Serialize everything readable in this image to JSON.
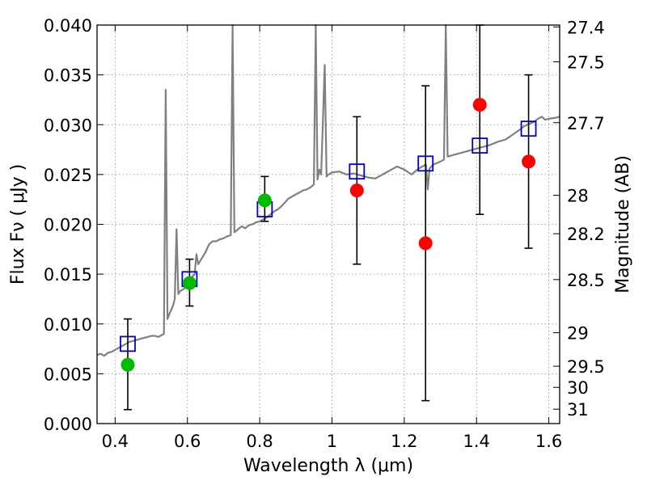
{
  "chart_data": {
    "type": "scatter",
    "title": "",
    "xlabel": "Wavelength  λ (μm)",
    "ylabel": "Flux  Fν  ( μJy )",
    "y2label": "Magnitude (AB)",
    "xlim": [
      0.35,
      1.63
    ],
    "ylim": [
      0.0,
      0.04
    ],
    "grid": true,
    "x_ticks": [
      {
        "v": 0.4,
        "label": "0.4"
      },
      {
        "v": 0.6,
        "label": "0.6"
      },
      {
        "v": 0.8,
        "label": "0.8"
      },
      {
        "v": 1.0,
        "label": "1"
      },
      {
        "v": 1.2,
        "label": "1.2"
      },
      {
        "v": 1.4,
        "label": "1.4"
      },
      {
        "v": 1.6,
        "label": "1.6"
      }
    ],
    "y_ticks": [
      {
        "v": 0.0,
        "label": "0.000"
      },
      {
        "v": 0.005,
        "label": "0.005"
      },
      {
        "v": 0.01,
        "label": "0.010"
      },
      {
        "v": 0.015,
        "label": "0.015"
      },
      {
        "v": 0.02,
        "label": "0.020"
      },
      {
        "v": 0.025,
        "label": "0.025"
      },
      {
        "v": 0.03,
        "label": "0.030"
      },
      {
        "v": 0.035,
        "label": "0.035"
      },
      {
        "v": 0.04,
        "label": "0.040"
      }
    ],
    "y2_ticks": [
      {
        "mag": 27.4,
        "label": "27.4"
      },
      {
        "mag": 27.5,
        "label": "27.5"
      },
      {
        "mag": 27.7,
        "label": "27.7"
      },
      {
        "mag": 28.0,
        "label": "28"
      },
      {
        "mag": 28.2,
        "label": "28.2"
      },
      {
        "mag": 28.5,
        "label": "28.5"
      },
      {
        "mag": 29.0,
        "label": "29"
      },
      {
        "mag": 29.5,
        "label": "29.5"
      },
      {
        "mag": 30.0,
        "label": "30"
      },
      {
        "mag": 31.0,
        "label": "31"
      }
    ],
    "colors": {
      "model": "#808080",
      "model_photometry": "#0000cc",
      "detected": "#00bb00",
      "nondetected": "#ff0000",
      "errorbar": "#000000",
      "grid": "#888888"
    },
    "model_spectrum": [
      [
        0.35,
        0.0069
      ],
      [
        0.36,
        0.007
      ],
      [
        0.37,
        0.0068
      ],
      [
        0.38,
        0.0071
      ],
      [
        0.39,
        0.0072
      ],
      [
        0.4,
        0.0074
      ],
      [
        0.41,
        0.0076
      ],
      [
        0.42,
        0.0078
      ],
      [
        0.43,
        0.008
      ],
      [
        0.44,
        0.0082
      ],
      [
        0.45,
        0.0083
      ],
      [
        0.46,
        0.0084
      ],
      [
        0.47,
        0.0085
      ],
      [
        0.48,
        0.0086
      ],
      [
        0.49,
        0.0087
      ],
      [
        0.5,
        0.0088
      ],
      [
        0.51,
        0.0088
      ],
      [
        0.52,
        0.0087
      ],
      [
        0.53,
        0.0089
      ],
      [
        0.535,
        0.009
      ],
      [
        0.54,
        0.0335
      ],
      [
        0.545,
        0.0105
      ],
      [
        0.55,
        0.011
      ],
      [
        0.56,
        0.0118
      ],
      [
        0.565,
        0.0125
      ],
      [
        0.57,
        0.0195
      ],
      [
        0.575,
        0.013
      ],
      [
        0.58,
        0.0133
      ],
      [
        0.59,
        0.0135
      ],
      [
        0.6,
        0.014
      ],
      [
        0.61,
        0.0146
      ],
      [
        0.62,
        0.015
      ],
      [
        0.625,
        0.017
      ],
      [
        0.63,
        0.016
      ],
      [
        0.64,
        0.0166
      ],
      [
        0.65,
        0.0172
      ],
      [
        0.66,
        0.018
      ],
      [
        0.67,
        0.0183
      ],
      [
        0.68,
        0.0183
      ],
      [
        0.69,
        0.0185
      ],
      [
        0.7,
        0.0186
      ],
      [
        0.71,
        0.0188
      ],
      [
        0.72,
        0.0189
      ],
      [
        0.725,
        0.04
      ],
      [
        0.73,
        0.0192
      ],
      [
        0.74,
        0.0195
      ],
      [
        0.75,
        0.0198
      ],
      [
        0.76,
        0.0196
      ],
      [
        0.77,
        0.0199
      ],
      [
        0.78,
        0.02
      ],
      [
        0.79,
        0.0202
      ],
      [
        0.8,
        0.0203
      ],
      [
        0.81,
        0.0205
      ],
      [
        0.82,
        0.0207
      ],
      [
        0.83,
        0.021
      ],
      [
        0.84,
        0.0213
      ],
      [
        0.85,
        0.0215
      ],
      [
        0.86,
        0.0218
      ],
      [
        0.87,
        0.0222
      ],
      [
        0.88,
        0.0226
      ],
      [
        0.89,
        0.0228
      ],
      [
        0.9,
        0.023
      ],
      [
        0.91,
        0.0232
      ],
      [
        0.92,
        0.0234
      ],
      [
        0.93,
        0.0235
      ],
      [
        0.94,
        0.0237
      ],
      [
        0.95,
        0.024
      ],
      [
        0.955,
        0.04
      ],
      [
        0.96,
        0.0245
      ],
      [
        0.965,
        0.0255
      ],
      [
        0.97,
        0.025
      ],
      [
        0.98,
        0.036
      ],
      [
        0.985,
        0.0248
      ],
      [
        0.99,
        0.025
      ],
      [
        1.0,
        0.0252
      ],
      [
        1.02,
        0.0253
      ],
      [
        1.04,
        0.025
      ],
      [
        1.06,
        0.0251
      ],
      [
        1.08,
        0.0249
      ],
      [
        1.1,
        0.0247
      ],
      [
        1.12,
        0.0246
      ],
      [
        1.14,
        0.025
      ],
      [
        1.16,
        0.0254
      ],
      [
        1.18,
        0.0258
      ],
      [
        1.2,
        0.0255
      ],
      [
        1.22,
        0.025
      ],
      [
        1.24,
        0.0256
      ],
      [
        1.26,
        0.026
      ],
      [
        1.265,
        0.0235
      ],
      [
        1.27,
        0.0256
      ],
      [
        1.28,
        0.026
      ],
      [
        1.3,
        0.0263
      ],
      [
        1.31,
        0.0265
      ],
      [
        1.315,
        0.04
      ],
      [
        1.32,
        0.0268
      ],
      [
        1.34,
        0.027
      ],
      [
        1.36,
        0.0272
      ],
      [
        1.38,
        0.0274
      ],
      [
        1.4,
        0.0276
      ],
      [
        1.42,
        0.0278
      ],
      [
        1.44,
        0.028
      ],
      [
        1.46,
        0.0283
      ],
      [
        1.48,
        0.0285
      ],
      [
        1.5,
        0.029
      ],
      [
        1.52,
        0.0295
      ],
      [
        1.53,
        0.0298
      ],
      [
        1.54,
        0.03
      ],
      [
        1.56,
        0.0303
      ],
      [
        1.57,
        0.0306
      ],
      [
        1.58,
        0.0308
      ],
      [
        1.59,
        0.0305
      ],
      [
        1.6,
        0.0306
      ],
      [
        1.62,
        0.0307
      ],
      [
        1.63,
        0.0308
      ]
    ],
    "model_photometry": [
      {
        "x": 0.435,
        "y": 0.008
      },
      {
        "x": 0.606,
        "y": 0.0145
      },
      {
        "x": 0.814,
        "y": 0.0215
      },
      {
        "x": 1.069,
        "y": 0.0253
      },
      {
        "x": 1.259,
        "y": 0.0261
      },
      {
        "x": 1.409,
        "y": 0.0279
      },
      {
        "x": 1.544,
        "y": 0.0296
      }
    ],
    "observations": [
      {
        "x": 0.435,
        "y": 0.0059,
        "yerr_low": 0.0014,
        "yerr_high": 0.0105,
        "detected": true
      },
      {
        "x": 0.606,
        "y": 0.0141,
        "yerr_low": 0.0118,
        "yerr_high": 0.0165,
        "detected": true
      },
      {
        "x": 0.814,
        "y": 0.0224,
        "yerr_low": 0.0203,
        "yerr_high": 0.0248,
        "detected": true
      },
      {
        "x": 1.069,
        "y": 0.0234,
        "yerr_low": 0.016,
        "yerr_high": 0.0308,
        "detected": false
      },
      {
        "x": 1.259,
        "y": 0.0181,
        "yerr_low": 0.0023,
        "yerr_high": 0.0339,
        "detected": false
      },
      {
        "x": 1.409,
        "y": 0.032,
        "yerr_low": 0.021,
        "yerr_high": 0.04,
        "detected": false
      },
      {
        "x": 1.544,
        "y": 0.0263,
        "yerr_low": 0.0176,
        "yerr_high": 0.035,
        "detected": false
      }
    ]
  }
}
